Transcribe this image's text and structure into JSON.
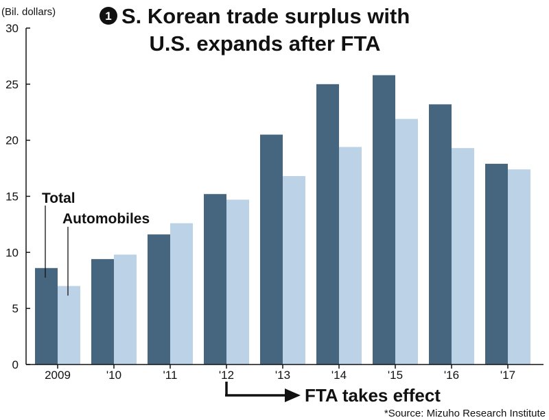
{
  "chart_data": {
    "type": "bar",
    "title": {
      "marker": "1",
      "lines": [
        "S. Korean trade surplus with",
        "U.S. expands after FTA"
      ]
    },
    "ylabel": "(Bil. dollars)",
    "xlabel": "",
    "ylim": [
      0,
      30
    ],
    "yticks": [
      0,
      5,
      10,
      15,
      20,
      25,
      30
    ],
    "categories": [
      "2009",
      "'10",
      "'11",
      "'12",
      "'13",
      "'14",
      "'15",
      "'16",
      "'17"
    ],
    "series": [
      {
        "name": "Total",
        "color": "#46667f",
        "values": [
          8.6,
          9.4,
          11.6,
          15.2,
          20.5,
          25.0,
          25.8,
          23.2,
          17.9
        ]
      },
      {
        "name": "Automobiles",
        "color": "#bcd2e6",
        "values": [
          7.0,
          9.8,
          12.6,
          14.7,
          16.8,
          19.4,
          21.9,
          19.3,
          17.4
        ]
      }
    ],
    "grid": false,
    "legend": "inline labels on first category",
    "annotations": [
      {
        "text": "FTA takes effect",
        "category": "'12"
      }
    ],
    "source": "*Source: Mizuho Research Institute"
  }
}
